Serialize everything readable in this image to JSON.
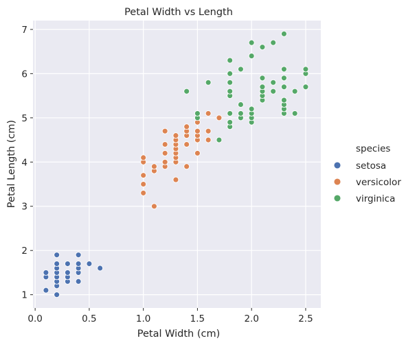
{
  "chart_data": {
    "type": "scatter",
    "title": "Petal Width vs Length",
    "xlabel": "Petal Width (cm)",
    "ylabel": "Petal Length (cm)",
    "xlim": [
      -0.02,
      2.64
    ],
    "ylim": [
      0.7,
      7.2
    ],
    "xticks": [
      0.0,
      0.5,
      1.0,
      1.5,
      2.0,
      2.5
    ],
    "xtick_labels": [
      "0.0",
      "0.5",
      "1.0",
      "1.5",
      "2.0",
      "2.5"
    ],
    "yticks": [
      1,
      2,
      3,
      4,
      5,
      6,
      7
    ],
    "ytick_labels": [
      "1",
      "2",
      "3",
      "4",
      "5",
      "6",
      "7"
    ],
    "grid": true,
    "background": "#eaeaf2",
    "legend": {
      "title": "species",
      "placement": "right"
    },
    "series": [
      {
        "name": "setosa",
        "color": "#4c72b0",
        "points": [
          [
            0.1,
            1.1
          ],
          [
            0.1,
            1.4
          ],
          [
            0.1,
            1.5
          ],
          [
            0.2,
            1.0
          ],
          [
            0.2,
            1.2
          ],
          [
            0.2,
            1.3
          ],
          [
            0.2,
            1.4
          ],
          [
            0.2,
            1.5
          ],
          [
            0.2,
            1.6
          ],
          [
            0.2,
            1.7
          ],
          [
            0.2,
            1.9
          ],
          [
            0.3,
            1.3
          ],
          [
            0.3,
            1.4
          ],
          [
            0.3,
            1.5
          ],
          [
            0.3,
            1.7
          ],
          [
            0.4,
            1.3
          ],
          [
            0.4,
            1.5
          ],
          [
            0.4,
            1.6
          ],
          [
            0.4,
            1.7
          ],
          [
            0.4,
            1.9
          ],
          [
            0.5,
            1.7
          ],
          [
            0.6,
            1.6
          ]
        ]
      },
      {
        "name": "versicolor",
        "color": "#dd8452",
        "points": [
          [
            1.0,
            3.3
          ],
          [
            1.0,
            3.5
          ],
          [
            1.0,
            3.7
          ],
          [
            1.0,
            4.0
          ],
          [
            1.0,
            4.1
          ],
          [
            1.1,
            3.0
          ],
          [
            1.1,
            3.8
          ],
          [
            1.1,
            3.9
          ],
          [
            1.2,
            3.9
          ],
          [
            1.2,
            4.0
          ],
          [
            1.2,
            4.2
          ],
          [
            1.2,
            4.4
          ],
          [
            1.2,
            4.7
          ],
          [
            1.3,
            3.6
          ],
          [
            1.3,
            4.0
          ],
          [
            1.3,
            4.1
          ],
          [
            1.3,
            4.2
          ],
          [
            1.3,
            4.3
          ],
          [
            1.3,
            4.4
          ],
          [
            1.3,
            4.5
          ],
          [
            1.3,
            4.6
          ],
          [
            1.4,
            3.9
          ],
          [
            1.4,
            4.4
          ],
          [
            1.4,
            4.6
          ],
          [
            1.4,
            4.7
          ],
          [
            1.4,
            4.8
          ],
          [
            1.5,
            4.2
          ],
          [
            1.5,
            4.5
          ],
          [
            1.5,
            4.6
          ],
          [
            1.5,
            4.7
          ],
          [
            1.5,
            4.9
          ],
          [
            1.6,
            4.5
          ],
          [
            1.6,
            4.7
          ],
          [
            1.6,
            5.1
          ],
          [
            1.7,
            5.0
          ],
          [
            1.8,
            4.8
          ]
        ]
      },
      {
        "name": "virginica",
        "color": "#55a868",
        "points": [
          [
            1.4,
            5.6
          ],
          [
            1.5,
            5.0
          ],
          [
            1.5,
            5.1
          ],
          [
            1.6,
            5.8
          ],
          [
            1.7,
            4.5
          ],
          [
            1.8,
            4.8
          ],
          [
            1.8,
            4.9
          ],
          [
            1.8,
            5.1
          ],
          [
            1.8,
            5.5
          ],
          [
            1.8,
            5.6
          ],
          [
            1.8,
            5.8
          ],
          [
            1.8,
            6.0
          ],
          [
            1.8,
            6.3
          ],
          [
            1.9,
            5.0
          ],
          [
            1.9,
            5.1
          ],
          [
            1.9,
            5.3
          ],
          [
            1.9,
            6.1
          ],
          [
            2.0,
            4.9
          ],
          [
            2.0,
            5.0
          ],
          [
            2.0,
            5.1
          ],
          [
            2.0,
            5.2
          ],
          [
            2.0,
            6.4
          ],
          [
            2.0,
            6.7
          ],
          [
            2.1,
            5.4
          ],
          [
            2.1,
            5.5
          ],
          [
            2.1,
            5.6
          ],
          [
            2.1,
            5.7
          ],
          [
            2.1,
            5.9
          ],
          [
            2.1,
            6.6
          ],
          [
            2.2,
            5.6
          ],
          [
            2.2,
            5.8
          ],
          [
            2.2,
            6.7
          ],
          [
            2.3,
            5.1
          ],
          [
            2.3,
            5.2
          ],
          [
            2.3,
            5.3
          ],
          [
            2.3,
            5.4
          ],
          [
            2.3,
            5.7
          ],
          [
            2.3,
            5.9
          ],
          [
            2.3,
            6.1
          ],
          [
            2.3,
            6.9
          ],
          [
            2.4,
            5.1
          ],
          [
            2.4,
            5.6
          ],
          [
            2.5,
            5.7
          ],
          [
            2.5,
            6.0
          ],
          [
            2.5,
            6.1
          ]
        ]
      }
    ]
  }
}
